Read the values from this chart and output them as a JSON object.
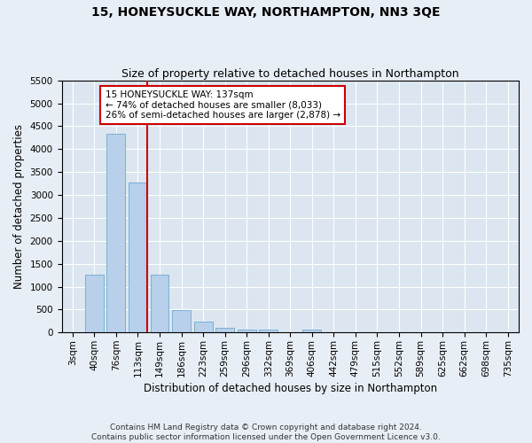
{
  "title": "15, HONEYSUCKLE WAY, NORTHAMPTON, NN3 3QE",
  "subtitle": "Size of property relative to detached houses in Northampton",
  "xlabel": "Distribution of detached houses by size in Northampton",
  "ylabel": "Number of detached properties",
  "categories": [
    "3sqm",
    "40sqm",
    "76sqm",
    "113sqm",
    "149sqm",
    "186sqm",
    "223sqm",
    "259sqm",
    "296sqm",
    "332sqm",
    "369sqm",
    "406sqm",
    "442sqm",
    "479sqm",
    "515sqm",
    "552sqm",
    "589sqm",
    "625sqm",
    "662sqm",
    "698sqm",
    "735sqm"
  ],
  "values": [
    0,
    1270,
    4330,
    3280,
    1270,
    480,
    230,
    105,
    60,
    60,
    0,
    60,
    0,
    0,
    0,
    0,
    0,
    0,
    0,
    0,
    0
  ],
  "bar_color": "#b8d0ea",
  "bar_edge_color": "#6fa8d0",
  "vline_color": "#cc0000",
  "vline_pos": 3.42,
  "annotation_text": "15 HONEYSUCKLE WAY: 137sqm\n← 74% of detached houses are smaller (8,033)\n26% of semi-detached houses are larger (2,878) →",
  "annotation_box_color": "#ffffff",
  "annotation_box_edge": "#cc0000",
  "ylim": [
    0,
    5500
  ],
  "yticks": [
    0,
    500,
    1000,
    1500,
    2000,
    2500,
    3000,
    3500,
    4000,
    4500,
    5000,
    5500
  ],
  "bg_color": "#e8eef5",
  "plot_bg_color": "#dce6f0",
  "footer": "Contains HM Land Registry data © Crown copyright and database right 2024.\nContains public sector information licensed under the Open Government Licence v3.0.",
  "title_fontsize": 10,
  "subtitle_fontsize": 9,
  "axis_label_fontsize": 8.5,
  "tick_fontsize": 7.5,
  "annotation_fontsize": 7.5,
  "footer_fontsize": 6.5
}
